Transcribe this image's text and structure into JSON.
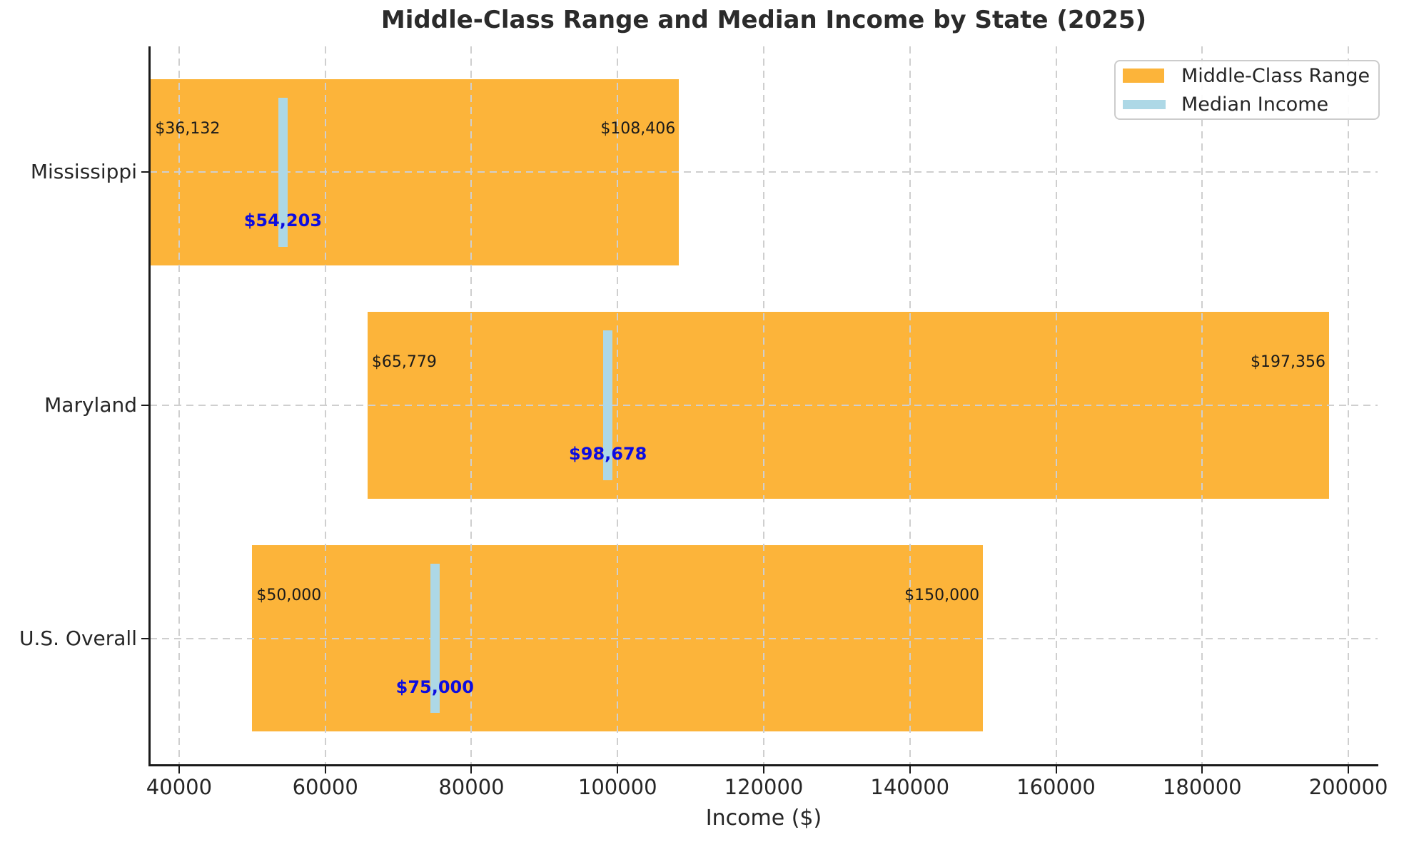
{
  "chart_data": {
    "type": "bar",
    "subtype": "horizontal-range-bar-with-median-markers",
    "title": "Middle-Class Range and Median Income by State (2025)",
    "xlabel": "Income ($)",
    "ylabel": "",
    "xlim": [
      36000,
      204000
    ],
    "xticks": [
      40000,
      60000,
      80000,
      100000,
      120000,
      140000,
      160000,
      180000,
      200000
    ],
    "xtick_labels": [
      "40000",
      "60000",
      "80000",
      "100000",
      "120000",
      "140000",
      "160000",
      "180000",
      "200000"
    ],
    "grid": "dashed gridlines on both axes, drawn above bars",
    "legend_position": "upper right inside plot",
    "categories": [
      "Mississippi",
      "Maryland",
      "U.S. Overall"
    ],
    "rows": [
      {
        "category": "Mississippi",
        "range_low": 36132,
        "range_high": 108406,
        "median": 54203,
        "range_low_label": "$36,132",
        "range_high_label": "$108,406",
        "median_label": "$54,203"
      },
      {
        "category": "Maryland",
        "range_low": 65779,
        "range_high": 197356,
        "median": 98678,
        "range_low_label": "$65,779",
        "range_high_label": "$197,356",
        "median_label": "$98,678"
      },
      {
        "category": "U.S. Overall",
        "range_low": 50000,
        "range_high": 150000,
        "median": 75000,
        "range_low_label": "$50,000",
        "range_high_label": "$150,000",
        "median_label": "$75,000"
      }
    ],
    "legend": [
      {
        "label": "Middle-Class Range",
        "swatch": "orange-bar-swatch"
      },
      {
        "label": "Median Income",
        "swatch": "lightblue-line-swatch"
      }
    ]
  },
  "colors": {
    "bar": "#FCB43A",
    "median_marker": "#ADD8E6",
    "median_text": "#0D0DE0",
    "range_text": "#1a1a1a",
    "axis_text": "#262626",
    "title_text": "#2b2b2b",
    "grid": "#cfcfcf",
    "spine": "#1a1a1a",
    "legend_border": "#cccccc"
  }
}
